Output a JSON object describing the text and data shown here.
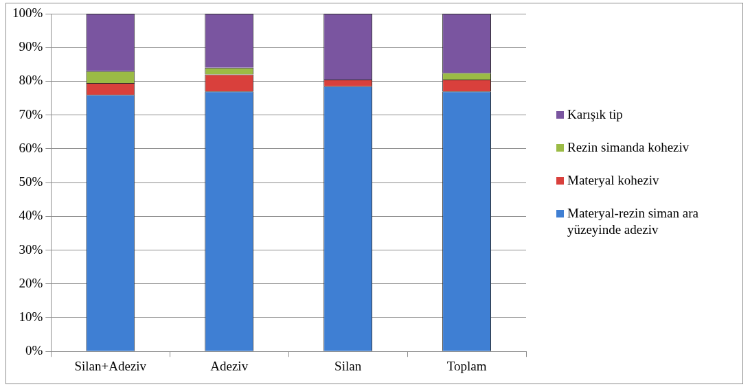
{
  "chart_data": {
    "type": "bar",
    "stacked": true,
    "categories": [
      "Silan+Adeziv",
      "Adeziv",
      "Silan",
      "Toplam"
    ],
    "series": [
      {
        "name": "Materyal-rezin siman ara yüzeyinde adeziv",
        "color": "#3f7fd3",
        "values": [
          76,
          77,
          78.5,
          77
        ]
      },
      {
        "name": "Materyal koheziv",
        "color": "#d9403c",
        "values": [
          3.5,
          5,
          2,
          3.5
        ]
      },
      {
        "name": "Rezin simanda koheziv",
        "color": "#9bbb45",
        "values": [
          3.5,
          2,
          0,
          2
        ]
      },
      {
        "name": "Karışık tip",
        "color": "#7a55a0",
        "values": [
          17,
          16,
          19.5,
          17.5
        ]
      }
    ],
    "ylim": [
      0,
      100
    ],
    "yticks": [
      {
        "value": 0,
        "label": "0%"
      },
      {
        "value": 10,
        "label": "10%"
      },
      {
        "value": 20,
        "label": "20%"
      },
      {
        "value": 30,
        "label": "30%"
      },
      {
        "value": 40,
        "label": "40%"
      },
      {
        "value": 50,
        "label": "50%"
      },
      {
        "value": 60,
        "label": "60%"
      },
      {
        "value": 70,
        "label": "70%"
      },
      {
        "value": 80,
        "label": "80%"
      },
      {
        "value": 90,
        "label": "90%"
      },
      {
        "value": 100,
        "label": "100%"
      }
    ],
    "grid": "y",
    "legend": "right"
  }
}
